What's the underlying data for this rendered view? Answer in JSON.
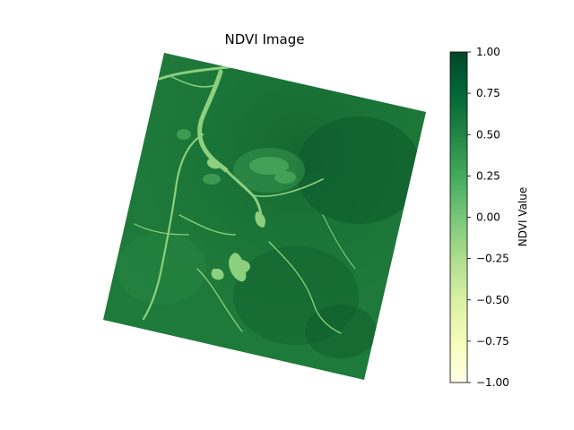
{
  "chart_data": {
    "type": "heatmap",
    "title": "NDVI Image",
    "colormap": "YlGn",
    "colorbar": {
      "label": "NDVI Value",
      "range": [
        -1.0,
        1.0
      ],
      "ticks": [
        "1.00",
        "0.75",
        "0.50",
        "0.25",
        "0.00",
        "−0.25",
        "−0.50",
        "−0.75",
        "−1.00"
      ],
      "tick_values": [
        1.0,
        0.75,
        0.5,
        0.25,
        0.0,
        -0.25,
        -0.5,
        -0.75,
        -1.0
      ],
      "colors": [
        "#ffffe5",
        "#f7fcb9",
        "#d9f0a3",
        "#addd8e",
        "#78c679",
        "#41ab5d",
        "#238443",
        "#006837",
        "#004529"
      ]
    },
    "axes_visible": false,
    "grid": false,
    "legend": "colorbar-right",
    "colors": {
      "land": "#1e7a3a",
      "land_dark": "#0f5f2c",
      "water": "#8ccf7e"
    }
  }
}
